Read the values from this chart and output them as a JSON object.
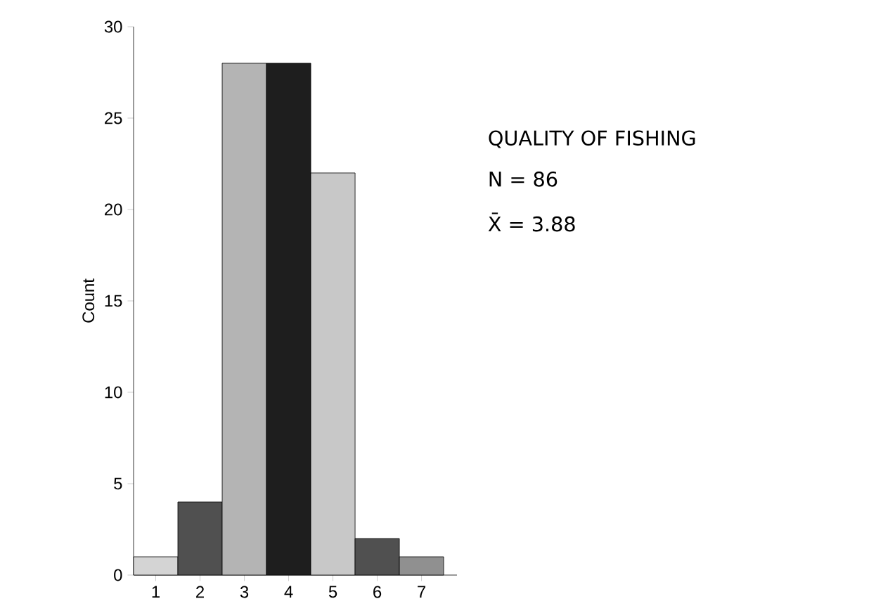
{
  "chart_data": {
    "type": "bar",
    "ylabel": "Count",
    "categories": [
      "1",
      "2",
      "3",
      "4",
      "5",
      "6",
      "7"
    ],
    "values": [
      1,
      4,
      28,
      28,
      22,
      2,
      1
    ],
    "colors": [
      "#d4d4d4",
      "#505050",
      "#b4b4b4",
      "#1e1e1e",
      "#c8c8c8",
      "#505050",
      "#909090"
    ],
    "ylim": [
      0,
      30
    ],
    "yticks": [
      0,
      5,
      10,
      15,
      20,
      25,
      30
    ],
    "annotations": [
      "QUALITY OF FISHING",
      "N = 86",
      "X̄  = 3.88"
    ]
  }
}
